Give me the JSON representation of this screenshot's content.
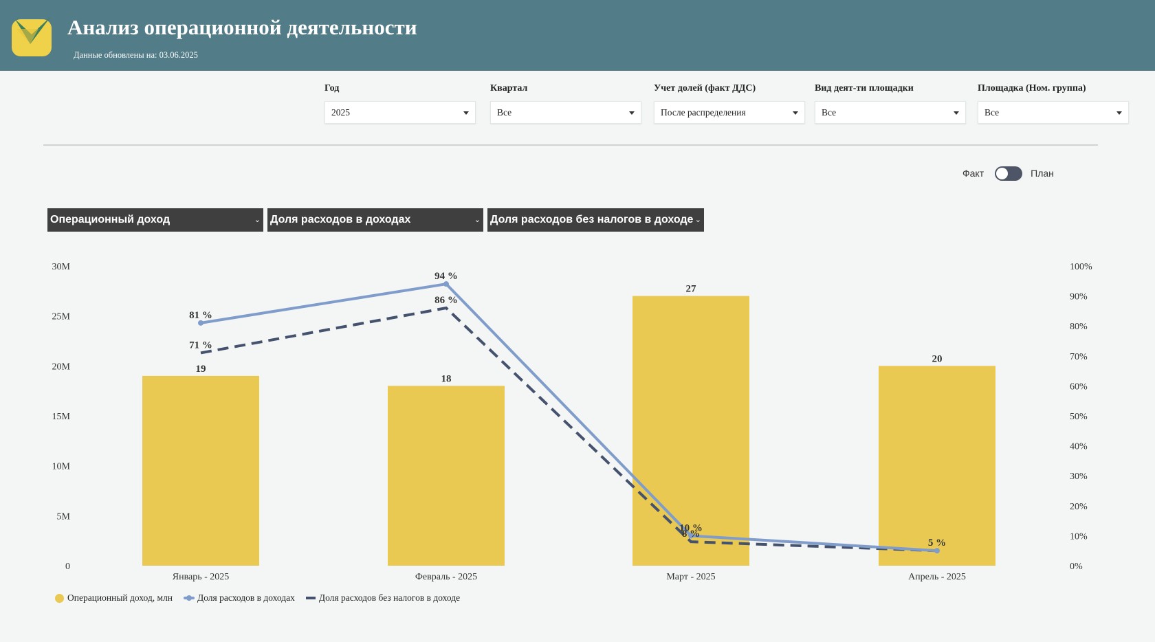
{
  "header": {
    "title": "Анализ операционной деятельности",
    "updated": "Данные обновлены на: 03.06.2025"
  },
  "filters": [
    {
      "label": "Год",
      "value": "2025"
    },
    {
      "label": "Квартал",
      "value": "Все"
    },
    {
      "label": "Учет долей (факт ДДС)",
      "value": "После распределения"
    },
    {
      "label": "Вид деят-ти площадки",
      "value": "Все"
    },
    {
      "label": "Площадка (Ном. группа)",
      "value": "Все"
    }
  ],
  "toggle": {
    "left_label": "Факт",
    "right_label": "План",
    "state": "Факт"
  },
  "measures": [
    {
      "label": "Операционный доход"
    },
    {
      "label": "Доля расходов в доходах"
    },
    {
      "label": "Доля расходов без налогов в доходе"
    }
  ],
  "colors": {
    "header_bg": "#527c87",
    "bar": "#e9c951",
    "line_solid": "#7f9ccb",
    "line_dashed": "#45526e"
  },
  "chart_data": {
    "type": "bar",
    "categories": [
      "Январь - 2025",
      "Февраль - 2025",
      "Март - 2025",
      "Апрель - 2025"
    ],
    "series": [
      {
        "name": "Операционный доход, млн",
        "type": "bar",
        "axis": "left",
        "values": [
          19,
          18,
          27,
          20
        ],
        "labels": [
          "19",
          "18",
          "27",
          "20"
        ]
      },
      {
        "name": "Доля расходов в доходах",
        "type": "line",
        "axis": "right",
        "values": [
          81,
          94,
          10,
          5
        ],
        "labels": [
          "81 %",
          "94 %",
          "10 %",
          "5 %"
        ]
      },
      {
        "name": "Доля расходов без налогов в доходе",
        "type": "line-dashed",
        "axis": "right",
        "values": [
          71,
          86,
          8,
          5
        ],
        "labels": [
          "71 %",
          "86 %",
          "8 %",
          ""
        ]
      }
    ],
    "y_left": {
      "ticks": [
        "0",
        "5M",
        "10M",
        "15M",
        "20M",
        "25M",
        "30M"
      ],
      "range": [
        0,
        30
      ]
    },
    "y_right": {
      "ticks": [
        "0%",
        "10%",
        "20%",
        "30%",
        "40%",
        "50%",
        "60%",
        "70%",
        "80%",
        "90%",
        "100%"
      ],
      "range": [
        0,
        100
      ]
    },
    "grid": false,
    "legend_position": "bottom-left"
  }
}
